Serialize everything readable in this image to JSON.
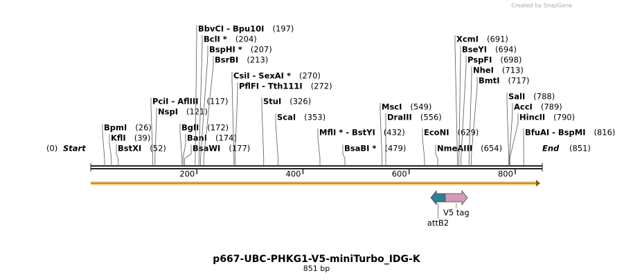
{
  "credit": "Created by SnapGene",
  "title": "p667-UBC-PHKG1-V5-miniTurbo_IDG-K",
  "length_label": "851 bp",
  "ticks": [
    200,
    400,
    600,
    800
  ],
  "start": {
    "name": "Start",
    "site": 0,
    "site_label": "(0)"
  },
  "end": {
    "name": "End",
    "site": 851,
    "site_label": "(851)"
  },
  "enzymes": [
    {
      "name": "BpmI",
      "site": 26,
      "site_label": "(26)"
    },
    {
      "name": "KflI",
      "site": 39,
      "site_label": "(39)"
    },
    {
      "name": "BstXI",
      "site": 52,
      "site_label": "(52)"
    },
    {
      "name": "PciI  -  AflIII",
      "site": 117,
      "site_label": "(117)"
    },
    {
      "name": "NspI",
      "site": 121,
      "site_label": "(121)"
    },
    {
      "name": "BglI",
      "site": 172,
      "site_label": "(172)"
    },
    {
      "name": "BanI",
      "site": 174,
      "site_label": "(174)"
    },
    {
      "name": "BsaWI",
      "site": 177,
      "site_label": "(177)"
    },
    {
      "name": "BbvCI  -  Bpu10I",
      "site": 197,
      "site_label": "(197)"
    },
    {
      "name": "BclI *",
      "site": 204,
      "site_label": "(204)"
    },
    {
      "name": "BspHI *",
      "site": 207,
      "site_label": "(207)"
    },
    {
      "name": "BsrBI",
      "site": 213,
      "site_label": "(213)"
    },
    {
      "name": "CsiI  -  SexAI *",
      "site": 270,
      "site_label": "(270)"
    },
    {
      "name": "PflFI  -  Tth111I",
      "site": 272,
      "site_label": "(272)"
    },
    {
      "name": "StuI",
      "site": 326,
      "site_label": "(326)"
    },
    {
      "name": "ScaI",
      "site": 353,
      "site_label": "(353)"
    },
    {
      "name": "MflI *  -  BstYI",
      "site": 432,
      "site_label": "(432)"
    },
    {
      "name": "BsaBI *",
      "site": 479,
      "site_label": "(479)"
    },
    {
      "name": "MscI",
      "site": 549,
      "site_label": "(549)"
    },
    {
      "name": "DraIII",
      "site": 556,
      "site_label": "(556)"
    },
    {
      "name": "EcoNI",
      "site": 629,
      "site_label": "(629)"
    },
    {
      "name": "NmeAIII",
      "site": 654,
      "site_label": "(654)"
    },
    {
      "name": "XcmI",
      "site": 691,
      "site_label": "(691)"
    },
    {
      "name": "BseYI",
      "site": 694,
      "site_label": "(694)"
    },
    {
      "name": "PspFI",
      "site": 698,
      "site_label": "(698)"
    },
    {
      "name": "NheI",
      "site": 713,
      "site_label": "(713)"
    },
    {
      "name": "BmtI",
      "site": 717,
      "site_label": "(717)"
    },
    {
      "name": "SalI",
      "site": 788,
      "site_label": "(788)"
    },
    {
      "name": "AccI",
      "site": 789,
      "site_label": "(789)"
    },
    {
      "name": "HincII",
      "site": 790,
      "site_label": "(790)"
    },
    {
      "name": "BfuAI  -  BspMI",
      "site": 816,
      "site_label": "(816)"
    }
  ],
  "features": [
    {
      "name": "attB2",
      "start": 641,
      "end": 668,
      "color": "#2e7f96"
    },
    {
      "name": "V5 tag",
      "start": 668,
      "end": 710,
      "color": "#d49ab8"
    }
  ]
}
